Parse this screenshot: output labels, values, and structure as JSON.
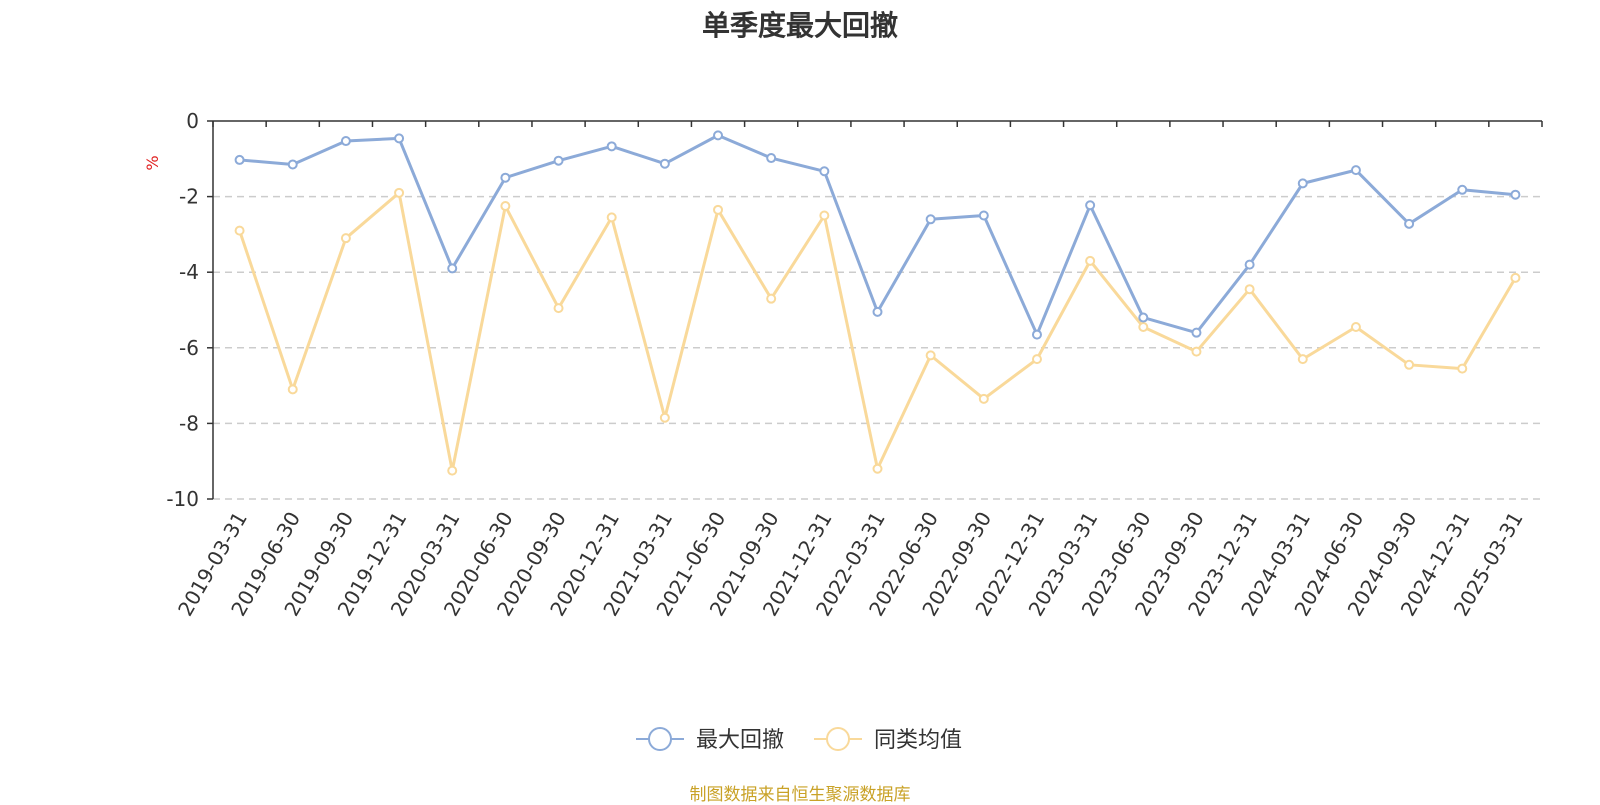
{
  "chart_data": {
    "type": "line",
    "title": "单季度最大回撤",
    "ylabel": "%",
    "xlabel": "",
    "ylim": [
      -10,
      0
    ],
    "yticks": [
      0,
      -2,
      -4,
      -6,
      -8,
      -10
    ],
    "grid": true,
    "legend_position": "bottom",
    "categories": [
      "2019-03-31",
      "2019-06-30",
      "2019-09-30",
      "2019-12-31",
      "2020-03-31",
      "2020-06-30",
      "2020-09-30",
      "2020-12-31",
      "2021-03-31",
      "2021-06-30",
      "2021-09-30",
      "2021-12-31",
      "2022-03-31",
      "2022-06-30",
      "2022-09-30",
      "2022-12-31",
      "2023-03-31",
      "2023-06-30",
      "2023-09-30",
      "2023-12-31",
      "2024-03-31",
      "2024-06-30",
      "2024-09-30",
      "2024-12-31",
      "2025-03-31"
    ],
    "series": [
      {
        "name": "最大回撤",
        "color": "#8caad8",
        "values": [
          -1.03,
          -1.15,
          -0.53,
          -0.46,
          -3.9,
          -1.5,
          -1.05,
          -0.67,
          -1.13,
          -0.38,
          -0.98,
          -1.33,
          -5.05,
          -2.6,
          -2.5,
          -5.65,
          -2.23,
          -5.2,
          -5.6,
          -3.8,
          -1.65,
          -1.3,
          -2.72,
          -1.82,
          -1.95
        ]
      },
      {
        "name": "同类均值",
        "color": "#f9d99a",
        "values": [
          -2.9,
          -7.1,
          -3.1,
          -1.9,
          -9.25,
          -2.25,
          -4.95,
          -2.55,
          -7.85,
          -2.35,
          -4.7,
          -2.5,
          -9.2,
          -6.2,
          -7.35,
          -6.3,
          -3.7,
          -5.45,
          -6.1,
          -4.45,
          -6.3,
          -5.45,
          -6.45,
          -6.55,
          -4.15
        ]
      }
    ]
  },
  "source_note": "制图数据来自恒生聚源数据库"
}
